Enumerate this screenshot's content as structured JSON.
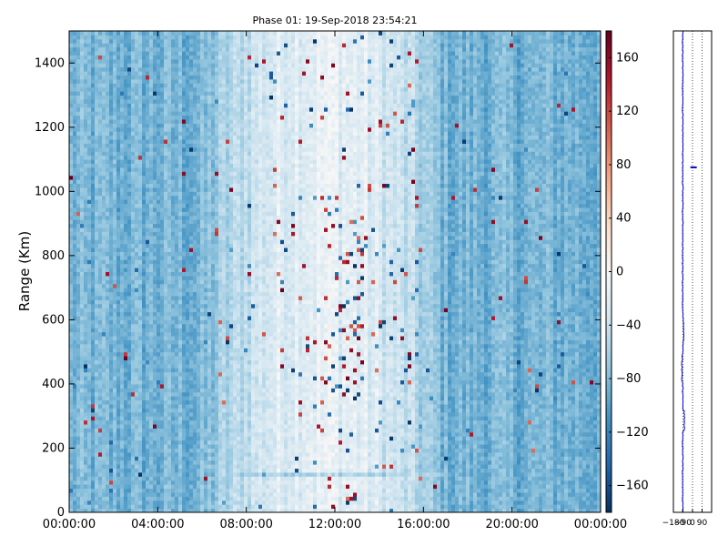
{
  "chart_data": [
    {
      "type": "heatmap",
      "title": "Phase 01: 19-Sep-2018 23:54:21",
      "ylabel": "Range (Km)",
      "xlabel": "",
      "x_ticks": [
        "00:00:00",
        "04:00:00",
        "08:00:00",
        "12:00:00",
        "16:00:00",
        "20:00:00",
        "00:00:00"
      ],
      "x_tick_hours": [
        0,
        4,
        8,
        12,
        16,
        20,
        24
      ],
      "xlim_hours": [
        0,
        24
      ],
      "y_ticks": [
        0,
        200,
        400,
        600,
        800,
        1000,
        1200,
        1400
      ],
      "ylim": [
        0,
        1500
      ],
      "colorbar": {
        "ticks": [
          160,
          120,
          80,
          40,
          0,
          -40,
          -80,
          -120,
          -160
        ],
        "range": [
          -180,
          180
        ],
        "colormap": "RdBu_r"
      },
      "description_of_values": "phase values mostly between -120 and -40; whiter (near -20..0) in the middle of the day between about 06:00 and 17:00; scattered dark red and dark blue pixels concentrated near 12:00-13:00 at 700-900 Km",
      "features": {
        "pale_band_hours": [
          6,
          17
        ],
        "noise_cluster": {
          "x_hours": [
            11.5,
            13.5
          ],
          "y_km": [
            700,
            900
          ]
        },
        "low_band_km": [
          110,
          130
        ]
      }
    },
    {
      "type": "line",
      "x_ticks": [
        "-180",
        "-90",
        "0",
        "90"
      ],
      "xlim": [
        -180,
        180
      ],
      "ylim": [
        0,
        1500
      ],
      "grid_x": [
        -90,
        0,
        90
      ],
      "grid_style": "dotted",
      "series_color": "#0000cc",
      "spike": {
        "y_km": 1075,
        "x": [
          -20,
          40
        ]
      }
    }
  ]
}
